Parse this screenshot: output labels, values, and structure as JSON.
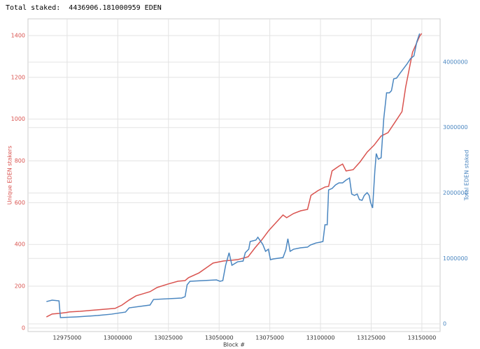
{
  "chart_data": {
    "type": "line",
    "title": "Total staked:  4436906.181000959 EDEN",
    "xlabel": "Block #",
    "ylabel": "Unique EDEN stakers",
    "y2label": "Total EDEN staked",
    "ylabel_color": "#d9534f",
    "y2label_color": "#4a86c0",
    "grid": true,
    "xlim": [
      12955700,
      13159000
    ],
    "xticks": [
      12975000,
      13000000,
      13025000,
      13050000,
      13075000,
      13100000,
      13125000,
      13150000
    ],
    "ylim": [
      -17,
      1480
    ],
    "yticks": [
      0,
      200,
      400,
      600,
      800,
      1000,
      1200,
      1400
    ],
    "y2lim": [
      -117000,
      4661000
    ],
    "y2ticks": [
      0,
      1000000,
      2000000,
      3000000,
      4000000
    ],
    "series": [
      {
        "color": "#d9534f",
        "axis": "y",
        "x": [
          12964800,
          12967600,
          12971000,
          12974500,
          12976200,
          12981400,
          12990000,
          12998700,
          13002100,
          13005600,
          13009000,
          13012500,
          13015900,
          13019400,
          13024600,
          13029700,
          13033200,
          13034900,
          13040100,
          13043500,
          13047000,
          13052200,
          13059100,
          13064300,
          13067700,
          13071200,
          13074600,
          13078100,
          13081500,
          13083300,
          13086700,
          13090200,
          13093600,
          13095300,
          13098800,
          13102200,
          13104000,
          13105700,
          13109100,
          13110900,
          13112600,
          13116100,
          13119500,
          13123000,
          13126400,
          13129900,
          13133300,
          13136800,
          13140200,
          13142000,
          13145400,
          13148900,
          13149900
        ],
        "values": [
          53,
          67,
          70,
          74,
          77,
          80,
          87,
          94,
          110,
          134,
          154,
          164,
          174,
          194,
          210,
          224,
          227,
          241,
          264,
          287,
          311,
          321,
          327,
          341,
          384,
          424,
          468,
          505,
          541,
          528,
          548,
          561,
          568,
          635,
          658,
          675,
          678,
          752,
          775,
          785,
          752,
          758,
          795,
          842,
          875,
          919,
          935,
          986,
          1036,
          1153,
          1320,
          1397,
          1410
        ]
      },
      {
        "color": "#4a86c0",
        "axis": "y2",
        "x": [
          12964800,
          12967600,
          12971000,
          12971700,
          12979700,
          12990000,
          12996900,
          13003800,
          13005600,
          13015900,
          13017600,
          13031500,
          13033200,
          13034200,
          13035600,
          13048700,
          13050400,
          13051800,
          13053200,
          13054900,
          13056300,
          13059100,
          13061800,
          13062900,
          13064600,
          13065300,
          13068100,
          13069100,
          13071500,
          13072900,
          13074300,
          13075300,
          13076700,
          13081500,
          13082900,
          13083900,
          13085000,
          13086700,
          13090200,
          13093600,
          13095000,
          13096000,
          13097800,
          13099800,
          13101200,
          13102200,
          13103300,
          13104000,
          13105700,
          13107400,
          13109100,
          13110900,
          13112600,
          13114300,
          13115400,
          13116700,
          13118100,
          13119200,
          13120500,
          13121600,
          13123000,
          13124000,
          13124700,
          13125700,
          13126800,
          13127500,
          13128500,
          13129900,
          13131200,
          13132600,
          13134000,
          13135000,
          13136100,
          13137500,
          13139200,
          13141300,
          13142600,
          13144400,
          13146100,
          13147500,
          13148900
        ],
        "values": [
          341000,
          363000,
          352000,
          96000,
          107000,
          128000,
          149000,
          181000,
          245000,
          288000,
          373000,
          395000,
          416000,
          597000,
          651000,
          672000,
          651000,
          661000,
          896000,
          1088000,
          896000,
          949000,
          960000,
          1088000,
          1141000,
          1259000,
          1280000,
          1323000,
          1216000,
          1109000,
          1141000,
          981000,
          992000,
          1013000,
          1131000,
          1301000,
          1109000,
          1141000,
          1163000,
          1173000,
          1205000,
          1216000,
          1237000,
          1248000,
          1259000,
          1515000,
          1515000,
          2048000,
          2069000,
          2123000,
          2155000,
          2155000,
          2197000,
          2229000,
          1984000,
          1963000,
          1984000,
          1899000,
          1888000,
          1963000,
          2005000,
          1963000,
          1856000,
          1771000,
          2336000,
          2603000,
          2517000,
          2539000,
          3136000,
          3531000,
          3531000,
          3563000,
          3744000,
          3755000,
          3829000,
          3915000,
          3968000,
          4053000,
          4096000,
          4309000,
          4437000
        ]
      }
    ]
  }
}
